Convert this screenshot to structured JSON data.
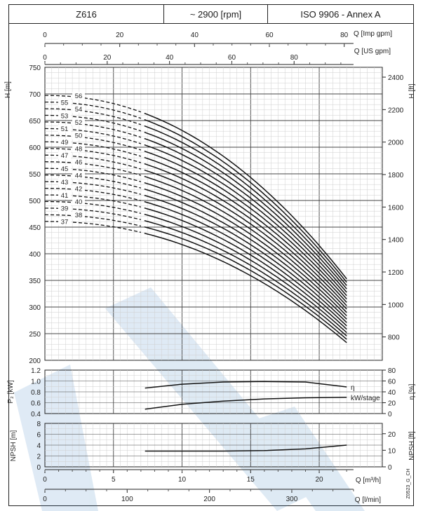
{
  "header": {
    "model": "Z616",
    "speed": "~ 2900 [rpm]",
    "standard": "ISO 9906 - Annex A"
  },
  "scales": {
    "imp_gpm": {
      "label": "Q [Imp gpm]",
      "ticks": [
        0,
        20,
        40,
        60,
        80
      ]
    },
    "us_gpm": {
      "label": "Q [US gpm]",
      "ticks": [
        0,
        20,
        40,
        60,
        80
      ]
    },
    "m3h": {
      "label": "Q [m³/h]",
      "ticks": [
        0,
        5,
        10,
        15,
        20
      ]
    },
    "lmin": {
      "label": "Q [l/min]",
      "ticks": [
        0,
        100,
        200,
        300
      ]
    },
    "head_m": {
      "label": "H [m]",
      "ticks": [
        200,
        250,
        300,
        350,
        400,
        450,
        500,
        550,
        600,
        650,
        700,
        750
      ]
    },
    "head_ft": {
      "label": "H [ft]",
      "ticks": [
        800,
        1000,
        1200,
        1400,
        1600,
        1800,
        2000,
        2200,
        2400
      ]
    },
    "power_kw": {
      "label": "P₂ [kW]",
      "ticks": [
        "0.4",
        "0.6",
        "0.8",
        "1.0",
        "1.2"
      ]
    },
    "eta": {
      "label": "η [%]",
      "ticks": [
        0,
        20,
        40,
        60,
        80
      ]
    },
    "npsh_m": {
      "label": "NPSH [m]",
      "ticks": [
        0,
        2,
        4,
        6,
        8
      ]
    },
    "npsh_ft": {
      "label": "NPSH [ft]",
      "ticks": [
        0,
        10,
        20
      ]
    }
  },
  "chart_data": [
    {
      "type": "line",
      "title": "",
      "xlabel": "Q [m³/h]",
      "ylabel": "H [m]",
      "xlim": [
        0,
        22.5
      ],
      "ylim": [
        200,
        750
      ],
      "grid": true,
      "series_note": "",
      "stages": [
        37,
        38,
        39,
        40,
        41,
        42,
        43,
        44,
        45,
        46,
        47,
        48,
        49,
        50,
        51,
        52,
        53,
        54,
        55,
        56
      ],
      "shutoff_head_per_stage": 12.45,
      "head_at_22m3h_per_stage": 6.3,
      "dashed_until_q": 7.2,
      "x_end": 22.0
    },
    {
      "type": "line",
      "xlabel": "Q [m³/h]",
      "ylabel": "P₂ [kW]",
      "ylim": [
        0.4,
        1.2
      ],
      "series": [
        {
          "name": "η",
          "axis": "right",
          "x": [
            7.3,
            10,
            13,
            16,
            19,
            22
          ],
          "values": [
            47,
            54,
            58,
            59,
            58,
            49
          ]
        },
        {
          "name": "kW/stage",
          "axis": "left",
          "x": [
            7.3,
            10,
            13,
            16,
            19,
            22
          ],
          "values": [
            0.48,
            0.57,
            0.63,
            0.67,
            0.69,
            0.7
          ]
        }
      ]
    },
    {
      "type": "line",
      "xlabel": "Q [m³/h]",
      "ylabel": "NPSH [m]",
      "ylim": [
        0,
        8
      ],
      "series": [
        {
          "name": "",
          "x": [
            7.3,
            10,
            13,
            16,
            19,
            22
          ],
          "values": [
            2.9,
            2.9,
            2.9,
            3.0,
            3.3,
            4.0
          ]
        }
      ]
    }
  ],
  "labels": {
    "eta_curve": "η",
    "kw_curve": "kW/stage",
    "code": "Z0523_G_CH"
  }
}
